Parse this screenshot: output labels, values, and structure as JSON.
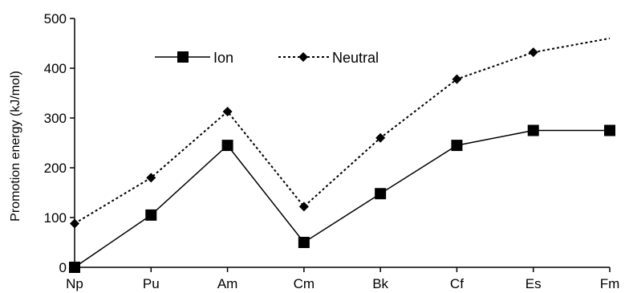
{
  "chart_data": {
    "type": "line",
    "title": "",
    "xlabel": "",
    "ylabel": "Promotion energy (kJ/mol)",
    "categories": [
      "Np",
      "Pu",
      "Am",
      "Cm",
      "Bk",
      "Cf",
      "Es",
      "Fm"
    ],
    "ylim": [
      0,
      500
    ],
    "yticks": [
      "0",
      "100",
      "200",
      "300",
      "400",
      "500"
    ],
    "grid": false,
    "legend_position": "top-left",
    "series": [
      {
        "name": "Ion",
        "marker": "square",
        "line_style": "solid",
        "color": "#000000",
        "values": [
          0,
          105,
          245,
          50,
          148,
          245,
          275,
          275
        ]
      },
      {
        "name": "Neutral",
        "marker": "diamond",
        "line_style": "dotted",
        "color": "#000000",
        "values": [
          88,
          180,
          313,
          122,
          260,
          378,
          432,
          460
        ]
      }
    ]
  }
}
